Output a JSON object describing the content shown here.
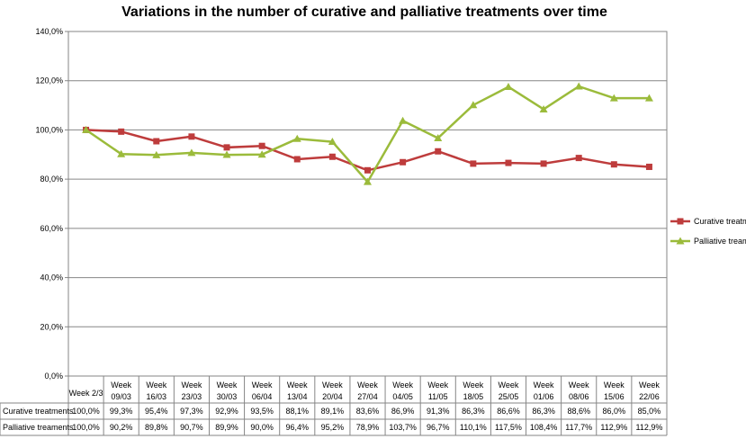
{
  "chart_data": {
    "type": "line",
    "title": "Variations in the number of  curative and palliative treatments over time",
    "categories": [
      "Week 2/3",
      "Week 09/03",
      "Week 16/03",
      "Week 23/03",
      "Week 30/03",
      "Week 06/04",
      "Week 13/04",
      "Week 20/04",
      "Week 27/04",
      "Week 04/05",
      "Week 11/05",
      "Week 18/05",
      "Week 25/05",
      "Week 01/06",
      "Week 08/06",
      "Week 15/06",
      "Week 22/06"
    ],
    "category_lines": [
      [
        "Week 2/3"
      ],
      [
        "Week",
        "09/03"
      ],
      [
        "Week",
        "16/03"
      ],
      [
        "Week",
        "23/03"
      ],
      [
        "Week",
        "30/03"
      ],
      [
        "Week",
        "06/04"
      ],
      [
        "Week",
        "13/04"
      ],
      [
        "Week",
        "20/04"
      ],
      [
        "Week",
        "27/04"
      ],
      [
        "Week",
        "04/05"
      ],
      [
        "Week",
        "11/05"
      ],
      [
        "Week",
        "18/05"
      ],
      [
        "Week",
        "25/05"
      ],
      [
        "Week",
        "01/06"
      ],
      [
        "Week",
        "08/06"
      ],
      [
        "Week",
        "15/06"
      ],
      [
        "Week",
        "22/06"
      ]
    ],
    "y_ticks": [
      "0,0%",
      "20,0%",
      "40,0%",
      "60,0%",
      "80,0%",
      "100,0%",
      "120,0%",
      "140,0%"
    ],
    "ylim": [
      0,
      140
    ],
    "grid": true,
    "legend_position": "right",
    "series": [
      {
        "name": "Curative treatments",
        "color": "#BE3C3C",
        "marker": "square",
        "values": [
          100.0,
          99.3,
          95.4,
          97.3,
          92.9,
          93.5,
          88.1,
          89.1,
          83.6,
          86.9,
          91.3,
          86.3,
          86.6,
          86.3,
          88.6,
          86.0,
          85.0
        ],
        "labels": [
          "100,0%",
          "99,3%",
          "95,4%",
          "97,3%",
          "92,9%",
          "93,5%",
          "88,1%",
          "89,1%",
          "83,6%",
          "86,9%",
          "91,3%",
          "86,3%",
          "86,6%",
          "86,3%",
          "88,6%",
          "86,0%",
          "85,0%"
        ]
      },
      {
        "name": "Palliative treaments",
        "color": "#9BBB3B",
        "marker": "triangle",
        "values": [
          100.0,
          90.2,
          89.8,
          90.7,
          89.9,
          90.0,
          96.4,
          95.2,
          78.9,
          103.7,
          96.7,
          110.1,
          117.5,
          108.4,
          117.7,
          112.9,
          112.9
        ],
        "labels": [
          "100,0%",
          "90,2%",
          "89,8%",
          "90,7%",
          "89,9%",
          "90,0%",
          "96,4%",
          "95,2%",
          "78,9%",
          "103,7%",
          "96,7%",
          "110,1%",
          "117,5%",
          "108,4%",
          "117,7%",
          "112,9%",
          "112,9%"
        ]
      }
    ]
  }
}
